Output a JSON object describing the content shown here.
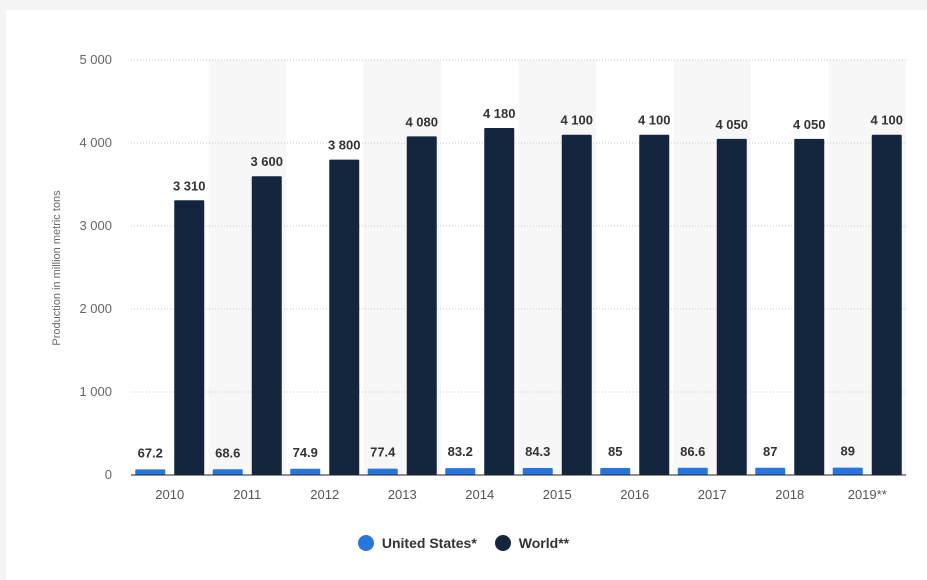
{
  "chart_data": {
    "type": "bar",
    "categories": [
      "2010",
      "2011",
      "2012",
      "2013",
      "2014",
      "2015",
      "2016",
      "2017",
      "2018",
      "2019**"
    ],
    "series": [
      {
        "name": "United States*",
        "color": "#2876dd",
        "values": [
          67.2,
          68.6,
          74.9,
          77.4,
          83.2,
          84.3,
          85,
          86.6,
          87,
          89
        ],
        "labels": [
          "67.2",
          "68.6",
          "74.9",
          "77.4",
          "83.2",
          "84.3",
          "85",
          "86.6",
          "87",
          "89"
        ]
      },
      {
        "name": "World**",
        "color": "#13263e",
        "values": [
          3310,
          3600,
          3800,
          4080,
          4180,
          4100,
          4100,
          4050,
          4050,
          4100
        ],
        "labels": [
          "3 310",
          "3 600",
          "3 800",
          "4 080",
          "4 180",
          "4 100",
          "4 100",
          "4 050",
          "4 050",
          "4 100"
        ]
      }
    ],
    "xlabel": "",
    "ylabel": "Production in million metric tons",
    "ylim": [
      0,
      5000
    ],
    "yticks": [
      0,
      1000,
      2000,
      3000,
      4000,
      5000
    ],
    "ytick_labels": [
      "0",
      "1 000",
      "2 000",
      "3 000",
      "4 000",
      "5 000"
    ],
    "grid": true,
    "legend_position": "bottom-center"
  }
}
